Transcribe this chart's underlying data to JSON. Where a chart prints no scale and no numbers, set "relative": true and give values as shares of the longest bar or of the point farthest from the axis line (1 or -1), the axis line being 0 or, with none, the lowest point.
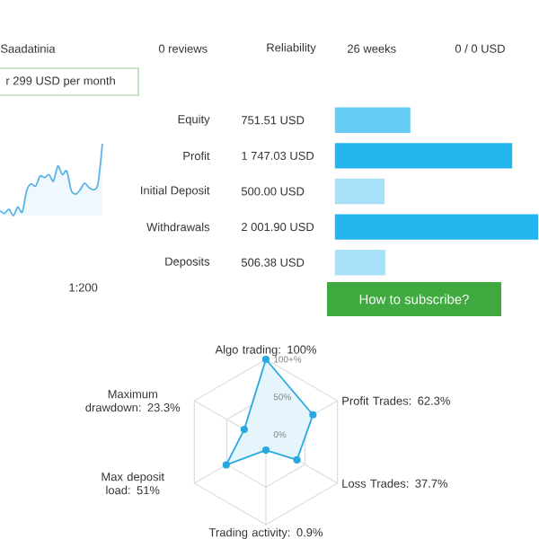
{
  "chart_data": [
    {
      "type": "area",
      "relative": true,
      "color": "#5ab4e8",
      "categories": [
        null,
        null,
        null,
        null,
        null,
        null,
        null,
        null,
        null,
        null,
        null,
        null,
        null,
        null,
        null,
        null,
        null,
        null,
        null,
        null,
        null,
        null,
        null,
        null
      ],
      "values": [
        0.07,
        0.03,
        0.09,
        0,
        0.12,
        0.05,
        0.35,
        0.44,
        0.41,
        0.55,
        0.53,
        0.57,
        0.48,
        0.69,
        0.57,
        0.62,
        0.35,
        0.3,
        0.36,
        0.45,
        0.39,
        0.36,
        0.44,
        1
      ],
      "annotations": [
        "Saadatinia",
        "0 reviews",
        "Reliability",
        "26 weeks",
        "0 / 0 USD",
        "r 299 USD per month",
        "1:200"
      ]
    },
    {
      "type": "bar",
      "orientation": "horizontal",
      "categories": [
        "Equity",
        "Profit",
        "Initial Deposit",
        "Withdrawals",
        "Deposits"
      ],
      "values": [
        751.51,
        1747.03,
        500.0,
        2001.9,
        506.38
      ],
      "value_labels": [
        "751.51 USD",
        "1 747.03 USD",
        "500.00 USD",
        "2 001.90 USD",
        "506.38 USD"
      ],
      "colors": [
        "#66ccf5",
        "#22b5ee",
        "#a8e0f8",
        "#22b5ee",
        "#a8e0f8"
      ],
      "annotations": [
        "How to subscribe?"
      ]
    },
    {
      "type": "radar",
      "marker": "circle",
      "categories": [
        "Algo trading: 100%",
        "Profit Trades: 62.3%",
        "Loss Trades: 37.7%",
        "Trading activity: 0.9%",
        "Max deposit load: 51%",
        "Maximum drawdown: 23.3%"
      ],
      "series": [
        {
          "color": "#29a8e0",
          "values": [
            100,
            62.3,
            37.7,
            0.9,
            51,
            23.3
          ]
        }
      ],
      "ylim": [
        -10,
        100
      ],
      "yticks": [
        {
          "value": 0,
          "label": "0%"
        },
        {
          "value": 50,
          "label": "50%"
        },
        {
          "value": 100,
          "label": "100+%"
        }
      ]
    }
  ]
}
